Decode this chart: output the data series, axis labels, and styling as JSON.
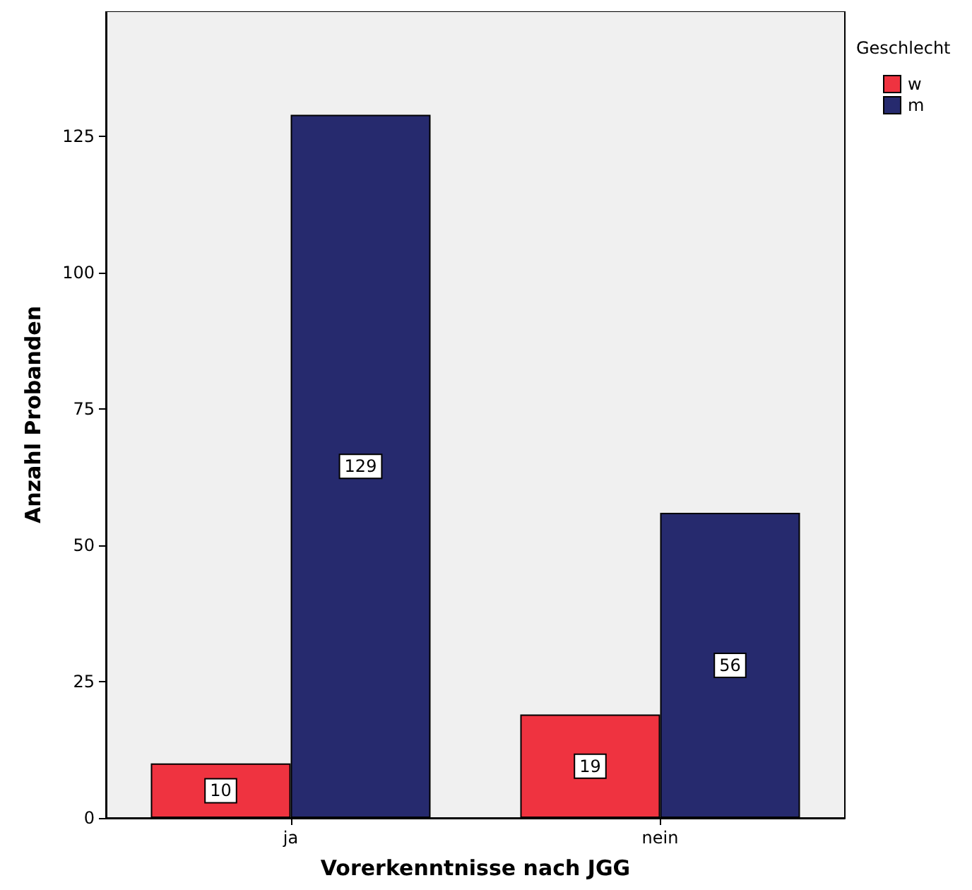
{
  "chart_data": {
    "type": "bar",
    "xlabel": "Vorerkenntnisse nach JGG",
    "ylabel": "Anzahl Probanden",
    "legend_title": "Geschlecht",
    "categories": [
      "ja",
      "nein"
    ],
    "series": [
      {
        "name": "w",
        "color": "#ef3340",
        "values": [
          10,
          19
        ]
      },
      {
        "name": "m",
        "color": "#262a6e",
        "values": [
          129,
          56
        ]
      }
    ],
    "ylim": [
      0,
      148
    ],
    "yticks": [
      0,
      25,
      50,
      75,
      100,
      125
    ],
    "data_labels": true,
    "legend": "top right",
    "grid": false
  }
}
